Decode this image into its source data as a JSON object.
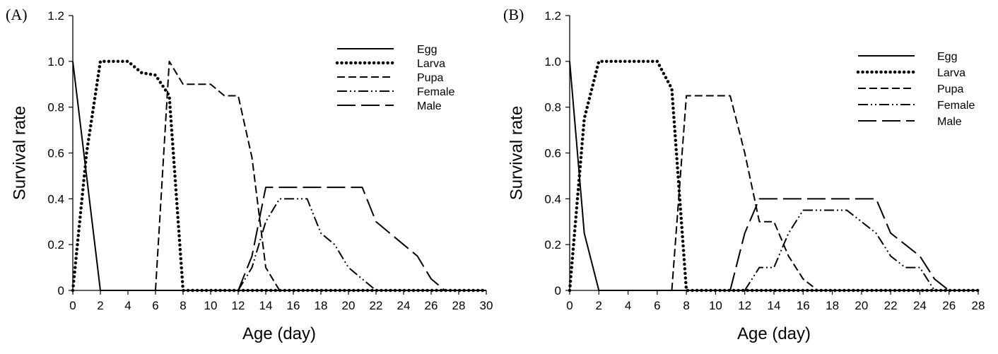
{
  "chart_data": [
    {
      "panel_label": "(A)",
      "type": "line",
      "xlabel": "Age (day)",
      "ylabel": "Survival rate",
      "xlim": [
        0,
        30
      ],
      "ylim": [
        0,
        1.2
      ],
      "x_ticks": [
        0,
        2,
        4,
        6,
        8,
        10,
        12,
        14,
        16,
        18,
        20,
        22,
        24,
        26,
        28,
        30
      ],
      "y_ticks": [
        0,
        0.2,
        0.4,
        0.6,
        0.8,
        1.0,
        1.2
      ],
      "y_tick_labels": [
        "0",
        "0.2",
        "0.4",
        "0.6",
        "0.8",
        "1.0",
        "1.2"
      ],
      "grid": false,
      "legend_position": "top-right",
      "series": [
        {
          "name": "Egg",
          "style": "solid",
          "x": [
            0,
            2,
            30
          ],
          "y": [
            1.0,
            0,
            0
          ]
        },
        {
          "name": "Larva",
          "style": "dotted",
          "x": [
            0,
            1,
            2,
            3,
            4,
            5,
            6,
            7,
            8,
            30
          ],
          "y": [
            0,
            0.6,
            1.0,
            1.0,
            1.0,
            0.95,
            0.94,
            0.85,
            0,
            0
          ]
        },
        {
          "name": "Pupa",
          "style": "dashed",
          "x": [
            6,
            7,
            8,
            9,
            10,
            11,
            12,
            13,
            14,
            15,
            30
          ],
          "y": [
            0,
            1.0,
            0.9,
            0.9,
            0.9,
            0.85,
            0.85,
            0.58,
            0.1,
            0,
            0
          ]
        },
        {
          "name": "Female",
          "style": "dash-dot-dot",
          "x": [
            12,
            13,
            14,
            15,
            16,
            17,
            18,
            19,
            20,
            21,
            22,
            30
          ],
          "y": [
            0,
            0.1,
            0.3,
            0.4,
            0.4,
            0.4,
            0.25,
            0.2,
            0.1,
            0.05,
            0,
            0
          ]
        },
        {
          "name": "Male",
          "style": "long-dash",
          "x": [
            12,
            13,
            14,
            15,
            16,
            17,
            18,
            19,
            20,
            21,
            22,
            23,
            24,
            25,
            26,
            27
          ],
          "y": [
            0,
            0.15,
            0.45,
            0.45,
            0.45,
            0.45,
            0.45,
            0.45,
            0.45,
            0.45,
            0.3,
            0.25,
            0.2,
            0.15,
            0.05,
            0
          ]
        }
      ]
    },
    {
      "panel_label": "(B)",
      "type": "line",
      "xlabel": "Age (day)",
      "ylabel": "Survival rate",
      "xlim": [
        0,
        28
      ],
      "ylim": [
        0,
        1.2
      ],
      "x_ticks": [
        0,
        2,
        4,
        6,
        8,
        10,
        12,
        14,
        16,
        18,
        20,
        22,
        24,
        26,
        28
      ],
      "y_ticks": [
        0,
        0.2,
        0.4,
        0.6,
        0.8,
        1.0,
        1.2
      ],
      "y_tick_labels": [
        "0",
        "0.2",
        "0.4",
        "0.6",
        "0.8",
        "1.0",
        "1.2"
      ],
      "grid": false,
      "legend_position": "top-right",
      "series": [
        {
          "name": "Egg",
          "style": "solid",
          "x": [
            0,
            1,
            2,
            28
          ],
          "y": [
            1.0,
            0.25,
            0,
            0
          ]
        },
        {
          "name": "Larva",
          "style": "dotted",
          "x": [
            0,
            1,
            2,
            3,
            4,
            5,
            6,
            7,
            8,
            28
          ],
          "y": [
            0,
            0.75,
            1.0,
            1.0,
            1.0,
            1.0,
            1.0,
            0.88,
            0,
            0
          ]
        },
        {
          "name": "Pupa",
          "style": "dashed",
          "x": [
            7,
            8,
            9,
            10,
            11,
            12,
            13,
            14,
            15,
            16,
            17,
            28
          ],
          "y": [
            0,
            0.85,
            0.85,
            0.85,
            0.85,
            0.6,
            0.3,
            0.3,
            0.15,
            0.05,
            0,
            0
          ]
        },
        {
          "name": "Female",
          "style": "dash-dot-dot",
          "x": [
            12,
            13,
            14,
            15,
            16,
            17,
            18,
            19,
            20,
            21,
            22,
            23,
            24,
            25,
            26
          ],
          "y": [
            0,
            0.1,
            0.1,
            0.25,
            0.35,
            0.35,
            0.35,
            0.35,
            0.3,
            0.25,
            0.15,
            0.1,
            0.1,
            0,
            0
          ]
        },
        {
          "name": "Male",
          "style": "long-dash",
          "x": [
            11,
            12,
            13,
            14,
            15,
            16,
            17,
            18,
            19,
            20,
            21,
            22,
            23,
            24,
            25,
            26
          ],
          "y": [
            0,
            0.25,
            0.4,
            0.4,
            0.4,
            0.4,
            0.4,
            0.4,
            0.4,
            0.4,
            0.4,
            0.25,
            0.2,
            0.15,
            0.05,
            0
          ]
        }
      ]
    }
  ]
}
